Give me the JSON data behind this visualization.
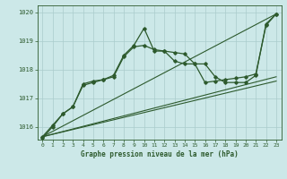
{
  "title": "Graphe pression niveau de la mer (hPa)",
  "bg_color": "#cce8e8",
  "grid_color": "#aacccc",
  "line_color": "#2d5a2d",
  "xlim": [
    -0.5,
    23.5
  ],
  "ylim": [
    1015.55,
    1020.25
  ],
  "yticks": [
    1016,
    1017,
    1018,
    1019,
    1020
  ],
  "xticks": [
    0,
    1,
    2,
    3,
    4,
    5,
    6,
    7,
    8,
    9,
    10,
    11,
    12,
    13,
    14,
    15,
    16,
    17,
    18,
    19,
    20,
    21,
    22,
    23
  ],
  "series_wiggly1": {
    "x": [
      0,
      1,
      2,
      3,
      4,
      5,
      6,
      7,
      8,
      9,
      10,
      11,
      12,
      13,
      14,
      15,
      16,
      17,
      18,
      19,
      20,
      21,
      22,
      23
    ],
    "y": [
      1015.65,
      1016.05,
      1016.45,
      1016.7,
      1017.45,
      1017.55,
      1017.65,
      1017.8,
      1018.5,
      1018.85,
      1019.45,
      1018.65,
      1018.65,
      1018.6,
      1018.55,
      1018.2,
      1018.2,
      1017.75,
      1017.55,
      1017.55,
      1017.55,
      1017.8,
      1019.6,
      1019.95
    ]
  },
  "series_wiggly2": {
    "x": [
      0,
      1,
      2,
      3,
      4,
      5,
      6,
      7,
      8,
      9,
      10,
      11,
      12,
      13,
      14,
      15,
      16,
      17,
      18,
      19,
      20,
      21,
      22,
      23
    ],
    "y": [
      1015.6,
      1016.0,
      1016.45,
      1016.7,
      1017.5,
      1017.6,
      1017.65,
      1017.75,
      1018.45,
      1018.8,
      1018.85,
      1018.7,
      1018.65,
      1018.3,
      1018.2,
      1018.2,
      1017.55,
      1017.6,
      1017.65,
      1017.7,
      1017.75,
      1017.85,
      1019.55,
      1019.95
    ]
  },
  "series_linear1": {
    "x": [
      0,
      23
    ],
    "y": [
      1015.65,
      1019.95
    ]
  },
  "series_linear2": {
    "x": [
      0,
      23
    ],
    "y": [
      1015.65,
      1017.75
    ]
  },
  "series_linear3": {
    "x": [
      0,
      23
    ],
    "y": [
      1015.65,
      1017.6
    ]
  }
}
